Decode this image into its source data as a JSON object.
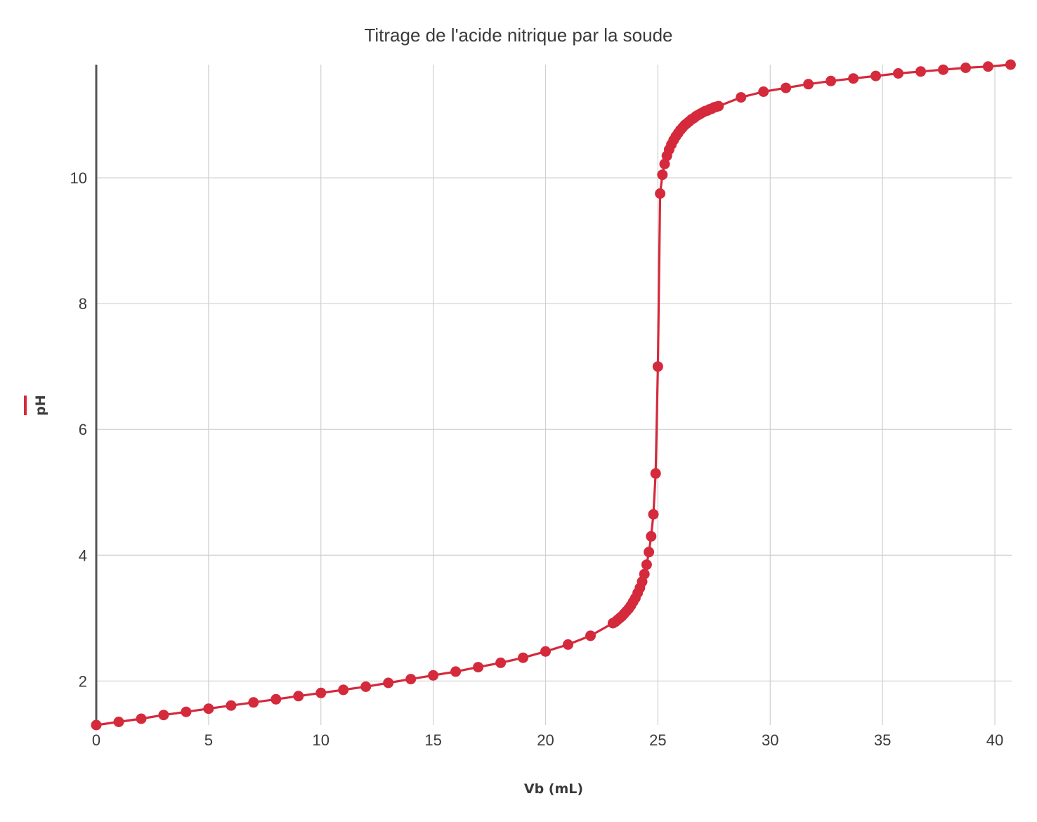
{
  "chart_data": {
    "type": "line",
    "title": "Titrage de l'acide nitrique par la soude",
    "xlabel": "Vb (mL)",
    "ylabel": "pH",
    "xlim": [
      0,
      40.75
    ],
    "ylim": [
      1.3,
      11.8
    ],
    "x_ticks": [
      "0",
      "5",
      "10",
      "15",
      "20",
      "25",
      "30",
      "35",
      "40"
    ],
    "y_ticks": [
      "2",
      "4",
      "6",
      "8",
      "10"
    ],
    "grid": true,
    "legend": "none",
    "color": "#d42a3c",
    "series": [
      {
        "x": [
          0,
          1,
          2,
          3,
          4,
          5,
          6,
          7,
          8,
          9,
          10,
          11,
          12,
          13,
          14,
          15,
          16,
          17,
          18,
          19,
          20,
          21,
          22,
          23,
          23.1,
          23.2,
          23.3,
          23.4,
          23.5,
          23.6,
          23.7,
          23.8,
          23.9,
          24,
          24.1,
          24.2,
          24.3,
          24.4,
          24.5,
          24.6,
          24.7,
          24.8,
          24.9,
          25,
          25.1,
          25.2,
          25.3,
          25.4,
          25.5,
          25.6,
          25.7,
          25.8,
          25.9,
          26,
          26.1,
          26.2,
          26.3,
          26.4,
          26.5,
          26.6,
          26.7,
          26.8,
          26.9,
          27,
          27.1,
          27.2,
          27.3,
          27.4,
          27.5,
          27.6,
          27.7,
          28.7,
          29.7,
          30.7,
          31.7,
          32.7,
          33.7,
          34.7,
          35.7,
          36.7,
          37.7,
          38.7,
          39.7,
          40.7
        ],
        "y": [
          1.3,
          1.35,
          1.4,
          1.46,
          1.51,
          1.56,
          1.61,
          1.66,
          1.71,
          1.76,
          1.81,
          1.86,
          1.91,
          1.97,
          2.03,
          2.09,
          2.15,
          2.22,
          2.29,
          2.37,
          2.47,
          2.58,
          2.72,
          2.92,
          2.94,
          2.97,
          3.0,
          3.03,
          3.07,
          3.11,
          3.15,
          3.2,
          3.26,
          3.32,
          3.4,
          3.48,
          3.58,
          3.7,
          3.85,
          4.05,
          4.3,
          4.65,
          5.3,
          7.0,
          9.75,
          10.05,
          10.22,
          10.35,
          10.45,
          10.53,
          10.6,
          10.66,
          10.71,
          10.76,
          10.8,
          10.84,
          10.87,
          10.9,
          10.93,
          10.95,
          10.98,
          11.0,
          11.02,
          11.04,
          11.06,
          11.07,
          11.09,
          11.1,
          11.12,
          11.13,
          11.14,
          11.28,
          11.37,
          11.43,
          11.49,
          11.54,
          11.58,
          11.62,
          11.66,
          11.69,
          11.72,
          11.75,
          11.77,
          11.8
        ]
      }
    ]
  }
}
